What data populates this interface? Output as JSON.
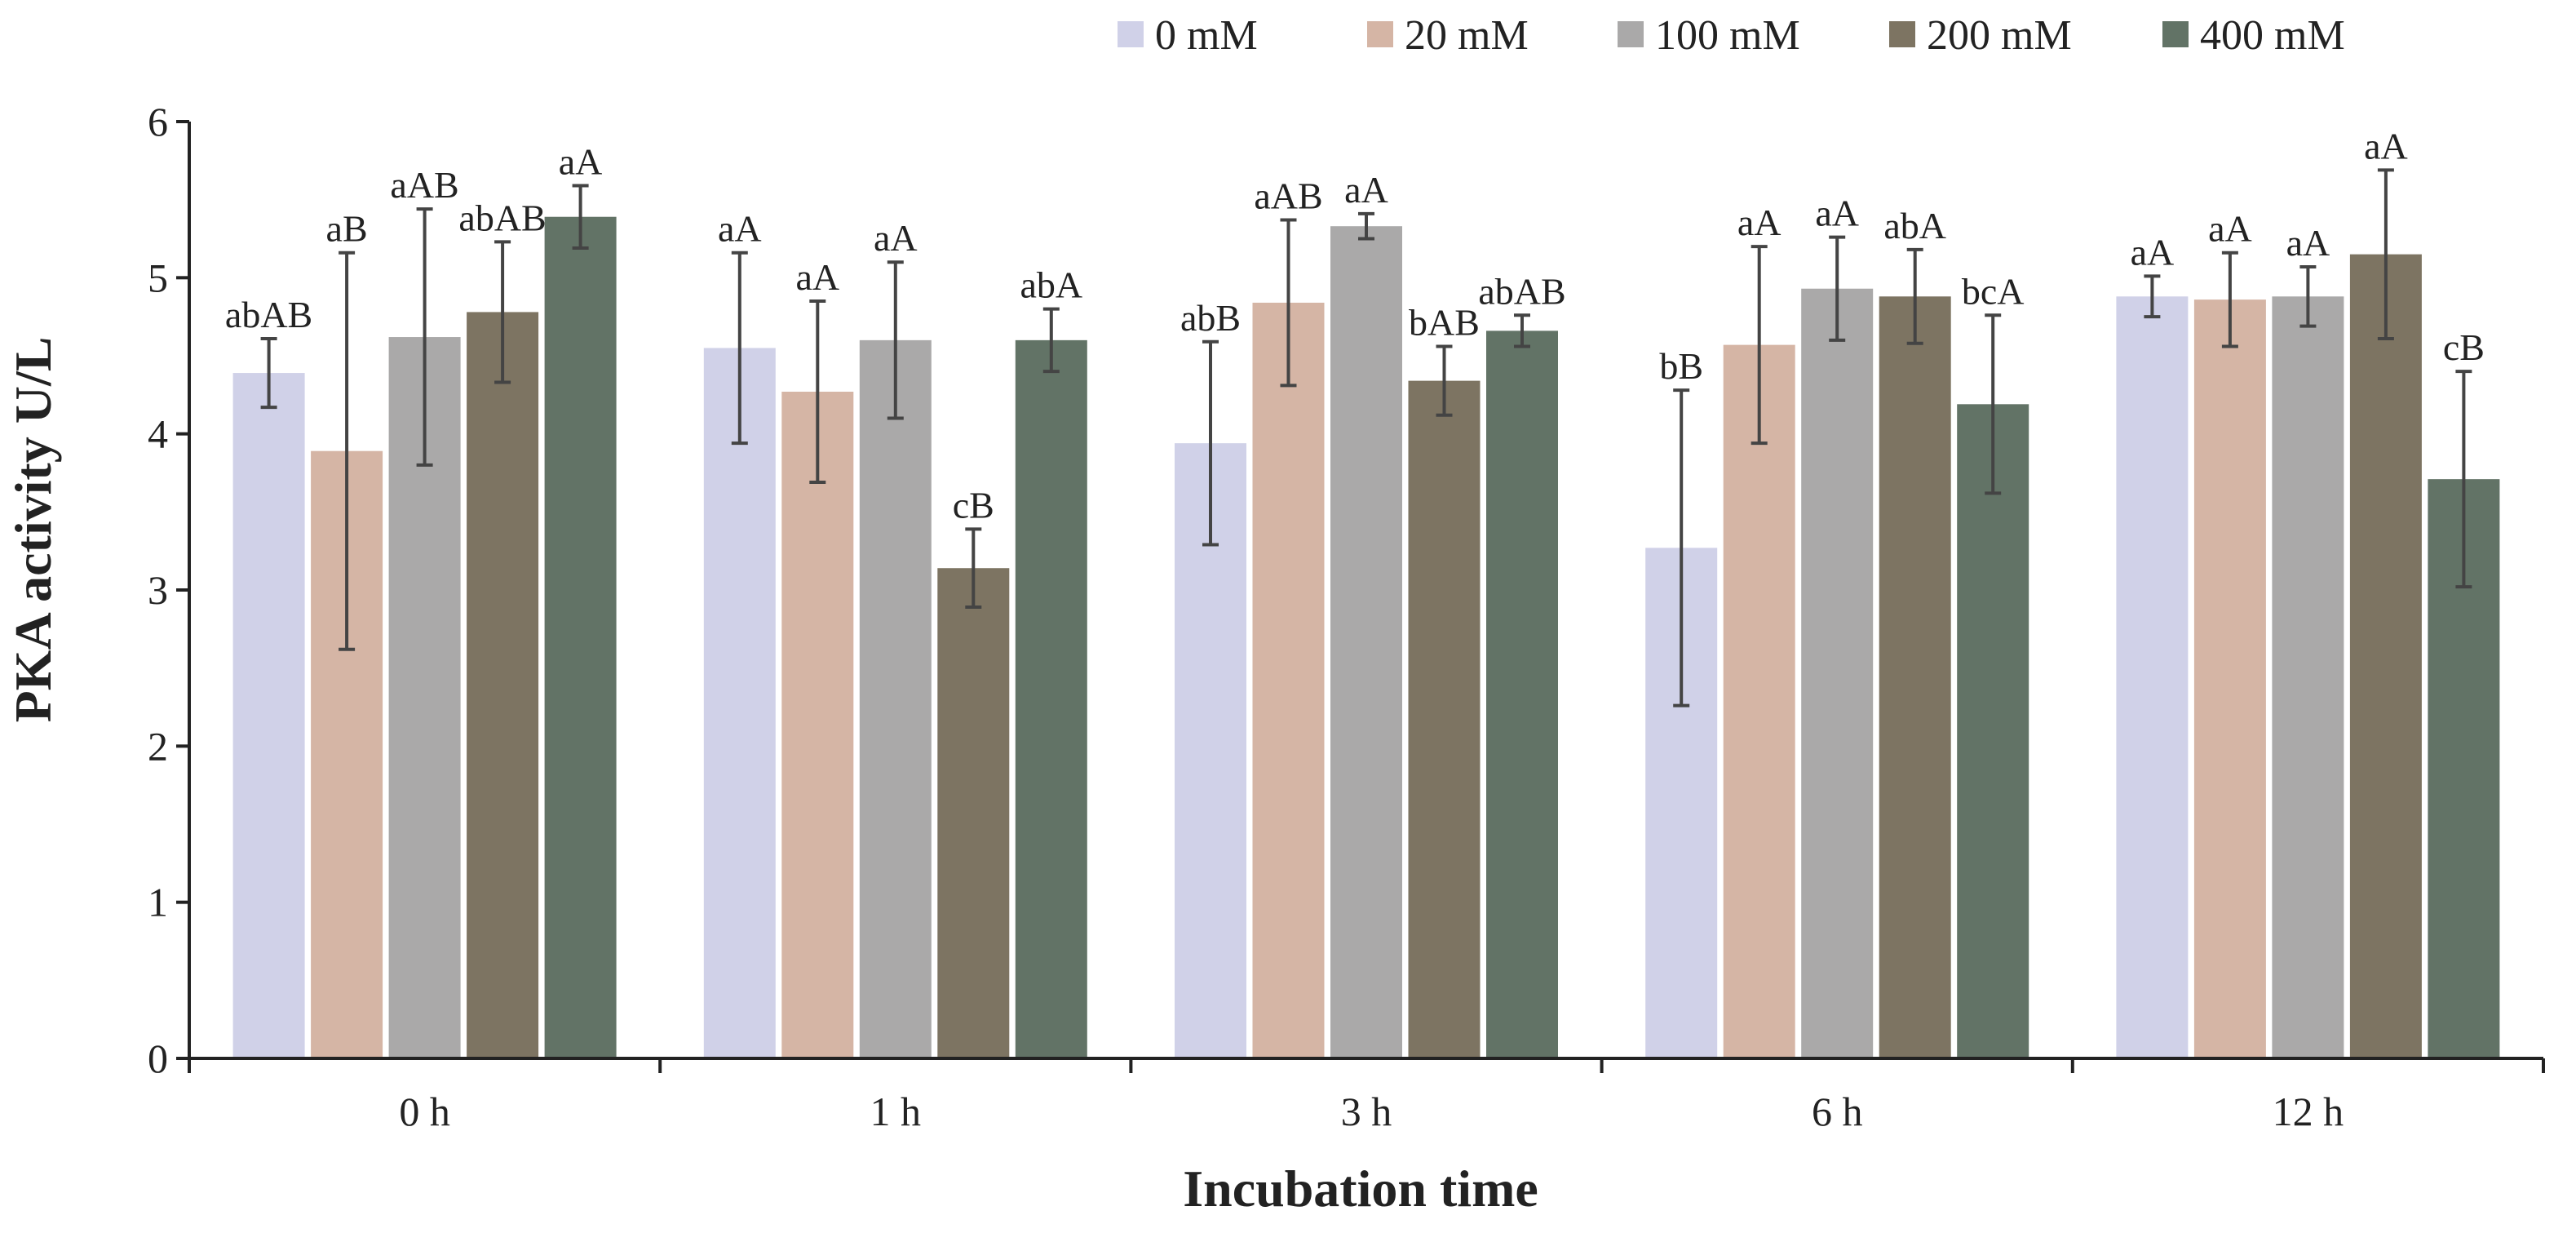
{
  "chart_data": {
    "type": "bar",
    "title": "",
    "xlabel": "Incubation time",
    "ylabel": "PKA activity U/L",
    "categories": [
      "0 h",
      "1 h",
      "3 h",
      "6 h",
      "12 h"
    ],
    "ylim": [
      0,
      6
    ],
    "yticks": [
      "0",
      "1",
      "2",
      "3",
      "4",
      "5",
      "6"
    ],
    "grid": false,
    "legend_position": "top",
    "series": [
      {
        "name": "0 mM",
        "color": "#d0d1e8",
        "values": [
          4.39,
          4.55,
          3.94,
          3.27,
          4.88
        ],
        "errors": [
          0.22,
          0.61,
          0.65,
          1.01,
          0.13
        ],
        "labels": [
          "abAB",
          "aA",
          "abB",
          "bB",
          "aA"
        ]
      },
      {
        "name": "20 mM",
        "color": "#d5b5a5",
        "values": [
          3.89,
          4.27,
          4.84,
          4.57,
          4.86
        ],
        "errors": [
          1.27,
          0.58,
          0.53,
          0.63,
          0.3
        ],
        "labels": [
          "aB",
          "aA",
          "aAB",
          "aA",
          "aA"
        ]
      },
      {
        "name": "100 mM",
        "color": "#aaa9a9",
        "values": [
          4.62,
          4.6,
          5.33,
          4.93,
          4.88
        ],
        "errors": [
          0.82,
          0.5,
          0.08,
          0.33,
          0.19
        ],
        "labels": [
          "aAB",
          "aA",
          "aA",
          "aA",
          "aA"
        ]
      },
      {
        "name": "200 mM",
        "color": "#7d7462",
        "values": [
          4.78,
          3.14,
          4.34,
          4.88,
          5.15
        ],
        "errors": [
          0.45,
          0.25,
          0.22,
          0.3,
          0.54
        ],
        "labels": [
          "abAB",
          "cB",
          "bAB",
          "abA",
          "aA"
        ]
      },
      {
        "name": "400 mM",
        "color": "#627366",
        "values": [
          5.39,
          4.6,
          4.66,
          4.19,
          3.71
        ],
        "errors": [
          0.2,
          0.2,
          0.1,
          0.57,
          0.69
        ],
        "labels": [
          "aA",
          "abA",
          "abAB",
          "bcA",
          "cB"
        ]
      }
    ]
  }
}
